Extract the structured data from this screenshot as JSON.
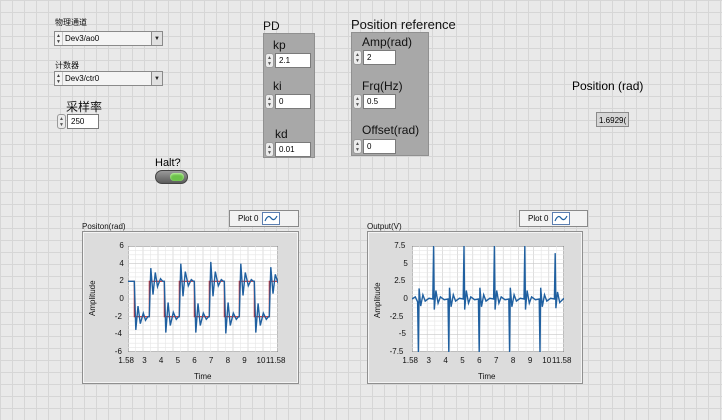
{
  "left_controls": {
    "channel_label": "物理通道",
    "channel_value": "Dev3/ao0",
    "counter_label": "计数器",
    "counter_value": "Dev3/ctr0",
    "rate_label": "采样率",
    "rate_value": "250",
    "halt_label": "Halt?"
  },
  "pd": {
    "title": "PD",
    "kp_label": "kp",
    "kp_value": "2.1",
    "ki_label": "ki",
    "ki_value": "0",
    "kd_label": "kd",
    "kd_value": "0.01"
  },
  "position_reference": {
    "title": "Position reference",
    "amp_label": "Amp(rad)",
    "amp_value": "2",
    "frq_label": "Frq(Hz)",
    "frq_value": "0.5",
    "offset_label": "Offset(rad)",
    "offset_value": "0"
  },
  "position_indicator": {
    "label": "Position (rad)",
    "value": "1.6929("
  },
  "colors": {
    "halt_led": "#6cc24a",
    "plot_line": "#2060a0",
    "reference_line": "#cc2222"
  },
  "chart_data": [
    {
      "type": "line",
      "title": "Positon(rad)",
      "legend": "Plot 0",
      "xlabel": "Time",
      "ylabel": "Amplitude",
      "xlim": [
        1.58,
        11.58
      ],
      "ylim": [
        -6,
        6
      ],
      "x_ticks": [
        "1.58",
        "3",
        "4",
        "5",
        "6",
        "7",
        "8",
        "9",
        "10",
        "11.58"
      ],
      "y_ticks": [
        "6",
        "4",
        "2",
        "0",
        "-2",
        "-4",
        "-6"
      ],
      "series": [
        {
          "points": [
            [
              1.58,
              2
            ],
            [
              1.9,
              2
            ],
            [
              2.0,
              2
            ],
            [
              2.1,
              -3.5
            ],
            [
              2.25,
              -0.8
            ],
            [
              2.4,
              -2.8
            ],
            [
              2.6,
              -1.6
            ],
            [
              2.75,
              -2.4
            ],
            [
              2.9,
              -2
            ],
            [
              3.0,
              -2
            ],
            [
              3.1,
              3.5
            ],
            [
              3.25,
              0.5
            ],
            [
              3.4,
              3.0
            ],
            [
              3.55,
              1.4
            ],
            [
              3.75,
              2.3
            ],
            [
              3.9,
              2
            ],
            [
              4.0,
              2
            ],
            [
              4.1,
              -3.8
            ],
            [
              4.25,
              -0.4
            ],
            [
              4.4,
              -3.0
            ],
            [
              4.6,
              -1.5
            ],
            [
              4.8,
              -2.3
            ],
            [
              4.95,
              -2
            ],
            [
              5.0,
              -2
            ],
            [
              5.1,
              4.0
            ],
            [
              5.25,
              0.3
            ],
            [
              5.4,
              3.1
            ],
            [
              5.6,
              1.5
            ],
            [
              5.8,
              2.2
            ],
            [
              5.95,
              2
            ],
            [
              6.0,
              2
            ],
            [
              6.1,
              -3.8
            ],
            [
              6.25,
              -0.5
            ],
            [
              6.4,
              -3.0
            ],
            [
              6.6,
              -1.6
            ],
            [
              6.8,
              -2.3
            ],
            [
              6.95,
              -2
            ],
            [
              7.0,
              -2
            ],
            [
              7.1,
              4.2
            ],
            [
              7.25,
              0.3
            ],
            [
              7.4,
              3.1
            ],
            [
              7.6,
              1.5
            ],
            [
              7.8,
              2.2
            ],
            [
              7.95,
              2
            ],
            [
              8.0,
              2
            ],
            [
              8.1,
              -3.9
            ],
            [
              8.25,
              -0.4
            ],
            [
              8.4,
              -3.0
            ],
            [
              8.6,
              -1.6
            ],
            [
              8.8,
              -2.3
            ],
            [
              8.95,
              -2
            ],
            [
              9.0,
              -2
            ],
            [
              9.1,
              4.0
            ],
            [
              9.25,
              0.4
            ],
            [
              9.4,
              3.0
            ],
            [
              9.6,
              1.5
            ],
            [
              9.8,
              2.2
            ],
            [
              9.95,
              2
            ],
            [
              10.0,
              2
            ],
            [
              10.1,
              -3.8
            ],
            [
              10.25,
              -0.5
            ],
            [
              10.4,
              -3.0
            ],
            [
              10.6,
              -1.6
            ],
            [
              10.8,
              -2.3
            ],
            [
              10.95,
              -2
            ],
            [
              11.0,
              -2
            ],
            [
              11.1,
              3.6
            ],
            [
              11.25,
              0.6
            ],
            [
              11.4,
              2.8
            ],
            [
              11.58,
              1.8
            ]
          ]
        },
        {
          "points": [
            [
              1.58,
              2
            ],
            [
              2.0,
              2
            ],
            [
              2.0,
              -2
            ],
            [
              3.0,
              -2
            ],
            [
              3.0,
              2
            ],
            [
              4.0,
              2
            ],
            [
              4.0,
              -2
            ],
            [
              5.0,
              -2
            ],
            [
              5.0,
              2
            ],
            [
              6.0,
              2
            ],
            [
              6.0,
              -2
            ],
            [
              7.0,
              -2
            ],
            [
              7.0,
              2
            ],
            [
              8.0,
              2
            ],
            [
              8.0,
              -2
            ],
            [
              9.0,
              -2
            ],
            [
              9.0,
              2
            ],
            [
              10.0,
              2
            ],
            [
              10.0,
              -2
            ],
            [
              11.0,
              -2
            ],
            [
              11.0,
              2
            ],
            [
              11.58,
              2
            ]
          ]
        }
      ]
    },
    {
      "type": "line",
      "title": "Output(V)",
      "legend": "Plot 0",
      "xlabel": "Time",
      "ylabel": "Amplitude",
      "xlim": [
        1.58,
        11.58
      ],
      "ylim": [
        -7.5,
        7.5
      ],
      "x_ticks": [
        "1.58",
        "3",
        "4",
        "5",
        "6",
        "7",
        "8",
        "9",
        "10",
        "11.58"
      ],
      "y_ticks": [
        "7.5",
        "5",
        "2.5",
        "0",
        "-2.5",
        "-5",
        "-7.5"
      ],
      "series": [
        {
          "points": [
            [
              1.58,
              0
            ],
            [
              1.8,
              0.3
            ],
            [
              1.95,
              -0.4
            ],
            [
              2.0,
              -7.5
            ],
            [
              2.05,
              1.5
            ],
            [
              2.15,
              -1.0
            ],
            [
              2.3,
              0.6
            ],
            [
              2.45,
              -0.3
            ],
            [
              2.7,
              0.1
            ],
            [
              2.95,
              0
            ],
            [
              3.0,
              7.5
            ],
            [
              3.05,
              -1.5
            ],
            [
              3.15,
              1.2
            ],
            [
              3.3,
              -0.6
            ],
            [
              3.45,
              0.3
            ],
            [
              3.7,
              -0.1
            ],
            [
              3.95,
              0
            ],
            [
              4.0,
              -7.5
            ],
            [
              4.05,
              1.6
            ],
            [
              4.15,
              -1.1
            ],
            [
              4.3,
              0.6
            ],
            [
              4.45,
              -0.3
            ],
            [
              4.7,
              0.1
            ],
            [
              4.95,
              0
            ],
            [
              5.0,
              7.5
            ],
            [
              5.05,
              -1.5
            ],
            [
              5.15,
              1.2
            ],
            [
              5.3,
              -0.6
            ],
            [
              5.45,
              0.3
            ],
            [
              5.7,
              -0.1
            ],
            [
              5.95,
              0
            ],
            [
              6.0,
              -7.5
            ],
            [
              6.05,
              1.6
            ],
            [
              6.15,
              -1.1
            ],
            [
              6.3,
              0.6
            ],
            [
              6.45,
              -0.3
            ],
            [
              6.7,
              0.1
            ],
            [
              6.95,
              0
            ],
            [
              7.0,
              7.5
            ],
            [
              7.05,
              -1.5
            ],
            [
              7.15,
              1.2
            ],
            [
              7.3,
              -0.6
            ],
            [
              7.45,
              0.3
            ],
            [
              7.7,
              -0.1
            ],
            [
              7.95,
              0
            ],
            [
              8.0,
              -7.5
            ],
            [
              8.05,
              1.6
            ],
            [
              8.15,
              -1.1
            ],
            [
              8.3,
              0.6
            ],
            [
              8.45,
              -0.3
            ],
            [
              8.7,
              0.1
            ],
            [
              8.95,
              0
            ],
            [
              9.0,
              7.5
            ],
            [
              9.05,
              -1.5
            ],
            [
              9.15,
              1.2
            ],
            [
              9.3,
              -0.6
            ],
            [
              9.45,
              0.3
            ],
            [
              9.7,
              -0.1
            ],
            [
              9.95,
              0
            ],
            [
              10.0,
              -7.5
            ],
            [
              10.05,
              1.6
            ],
            [
              10.15,
              -1.1
            ],
            [
              10.3,
              0.6
            ],
            [
              10.45,
              -0.3
            ],
            [
              10.7,
              0.1
            ],
            [
              10.95,
              0
            ],
            [
              11.0,
              6.5
            ],
            [
              11.05,
              -1.3
            ],
            [
              11.15,
              1.0
            ],
            [
              11.3,
              -0.5
            ],
            [
              11.58,
              0.1
            ]
          ]
        }
      ]
    }
  ]
}
